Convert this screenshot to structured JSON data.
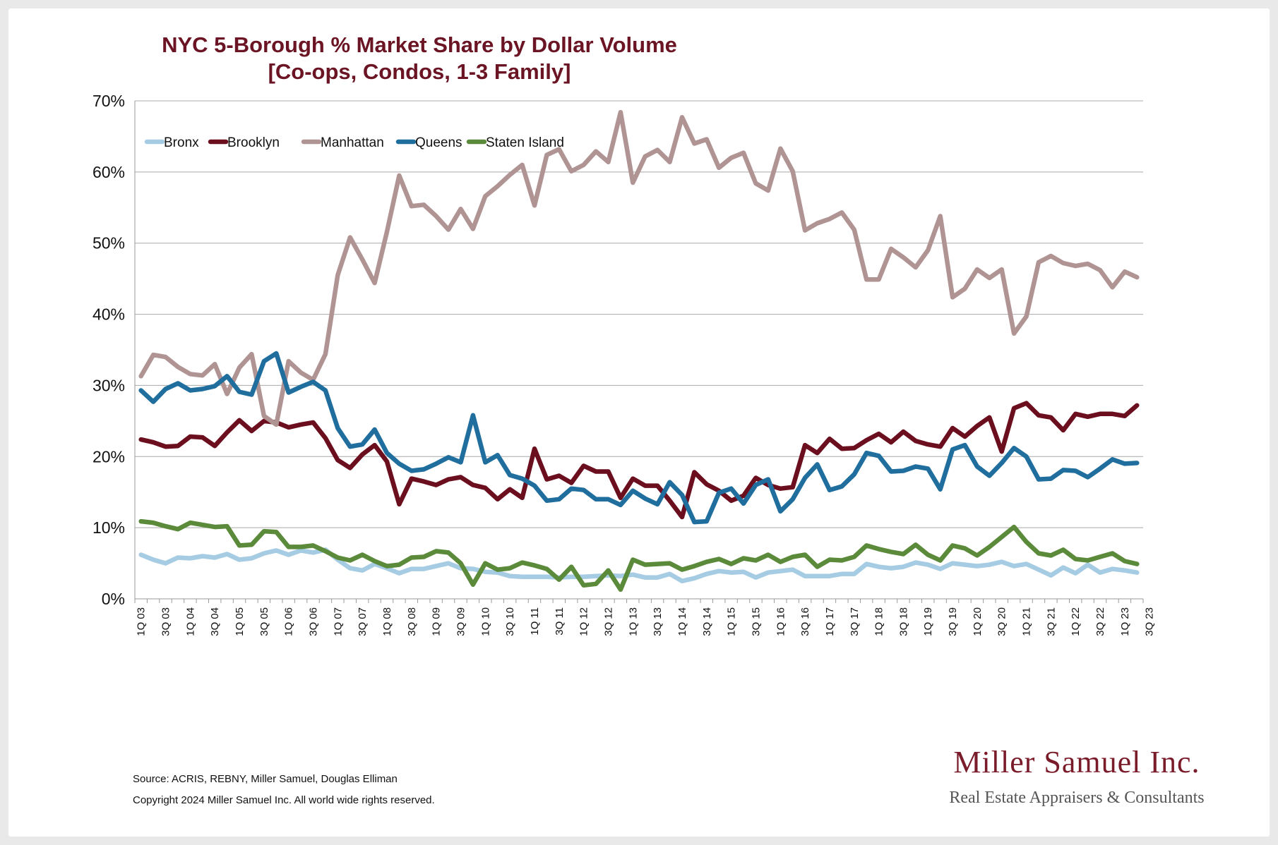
{
  "chart_data": {
    "type": "line",
    "title_line1": "NYC 5-Borough % Market Share by Dollar Volume",
    "title_line2": "[Co-ops, Condos, 1-3 Family]",
    "ylim": [
      0,
      70
    ],
    "yticks": [
      "0%",
      "10%",
      "20%",
      "30%",
      "40%",
      "50%",
      "60%",
      "70%"
    ],
    "grid": "horizontal",
    "legend_position": "top-left",
    "x_tick_labels": [
      "1Q 03",
      "3Q 03",
      "1Q 04",
      "3Q 04",
      "1Q 05",
      "3Q 05",
      "1Q 06",
      "3Q 06",
      "1Q 07",
      "3Q 07",
      "1Q 08",
      "3Q 08",
      "1Q 09",
      "3Q 09",
      "1Q 10",
      "3Q 10",
      "1Q 11",
      "3Q 11",
      "1Q 12",
      "3Q 12",
      "1Q 13",
      "3Q 13",
      "1Q 14",
      "3Q 14",
      "1Q 15",
      "3Q 15",
      "1Q 16",
      "3Q 16",
      "1Q 17",
      "3Q 17",
      "1Q 18",
      "3Q 18",
      "1Q 19",
      "3Q 19",
      "1Q 20",
      "3Q 20",
      "1Q 21",
      "3Q 21",
      "1Q 22",
      "3Q 22",
      "1Q 23",
      "3Q 23"
    ],
    "series": [
      {
        "name": "Bronx",
        "color": "#a6cce3",
        "values": [
          6.2,
          5.5,
          5.0,
          5.8,
          5.7,
          6.0,
          5.8,
          6.3,
          5.5,
          5.7,
          6.4,
          6.8,
          6.2,
          6.8,
          6.5,
          6.9,
          5.5,
          4.3,
          4.0,
          4.9,
          4.3,
          3.6,
          4.2,
          4.2,
          4.6,
          5.0,
          4.3,
          4.2,
          3.8,
          3.7,
          3.2,
          3.1,
          3.1,
          3.1,
          3.0,
          3.1,
          3.1,
          3.2,
          3.3,
          3.2,
          3.4,
          3.0,
          3.0,
          3.5,
          2.5,
          2.9,
          3.5,
          3.9,
          3.7,
          3.8,
          3.0,
          3.7,
          3.9,
          4.1,
          3.2,
          3.2,
          3.2,
          3.5,
          3.5,
          4.9,
          4.5,
          4.3,
          4.5,
          5.1,
          4.8,
          4.2,
          5.0,
          4.8,
          4.6,
          4.8,
          5.2,
          4.6,
          4.9,
          4.1,
          3.3,
          4.4,
          3.6,
          4.8,
          3.7,
          4.2,
          4.0,
          3.7
        ]
      },
      {
        "name": "Brooklyn",
        "color": "#6b0f1f",
        "values": [
          22.4,
          22.0,
          21.4,
          21.5,
          22.8,
          22.7,
          21.5,
          23.4,
          25.1,
          23.6,
          25.0,
          24.8,
          24.1,
          24.5,
          24.8,
          22.6,
          19.5,
          18.4,
          20.3,
          21.6,
          19.3,
          13.3,
          16.9,
          16.5,
          16.0,
          16.8,
          17.1,
          16.0,
          15.6,
          14.0,
          15.4,
          14.2,
          21.1,
          16.8,
          17.3,
          16.3,
          18.7,
          17.9,
          17.9,
          14.2,
          16.9,
          15.9,
          15.9,
          13.8,
          11.5,
          17.8,
          16.1,
          15.2,
          13.8,
          14.5,
          17.0,
          16.0,
          15.5,
          15.7,
          21.6,
          20.5,
          22.5,
          21.1,
          21.2,
          22.3,
          23.2,
          22.0,
          23.5,
          22.2,
          21.7,
          21.4,
          24.0,
          22.8,
          24.3,
          25.5,
          20.7,
          26.8,
          27.5,
          25.8,
          25.5,
          23.7,
          26.0,
          25.6,
          26.0,
          26.0,
          25.7,
          27.2
        ]
      },
      {
        "name": "Manhattan",
        "color": "#b09494",
        "values": [
          31.3,
          34.3,
          34.0,
          32.6,
          31.6,
          31.4,
          33.0,
          28.8,
          32.5,
          34.4,
          25.7,
          24.5,
          33.4,
          31.8,
          30.8,
          34.4,
          45.5,
          50.8,
          47.7,
          44.4,
          51.6,
          59.5,
          55.2,
          55.4,
          53.8,
          51.9,
          54.8,
          52.0,
          56.6,
          58.0,
          59.6,
          61.0,
          55.3,
          62.4,
          63.2,
          60.1,
          61.0,
          62.9,
          61.4,
          68.4,
          58.5,
          62.2,
          63.1,
          61.4,
          67.7,
          64.0,
          64.6,
          60.6,
          62.0,
          62.7,
          58.4,
          57.4,
          63.3,
          60.1,
          51.8,
          52.8,
          53.4,
          54.3,
          51.9,
          44.9,
          44.9,
          49.2,
          48.0,
          46.6,
          49.0,
          53.8,
          42.4,
          43.6,
          46.3,
          45.1,
          46.3,
          37.3,
          39.7,
          47.3,
          48.2,
          47.2,
          46.8,
          47.1,
          46.2,
          43.8,
          46.0,
          45.2
        ]
      },
      {
        "name": "Queens",
        "color": "#1f6e9e",
        "values": [
          29.3,
          27.7,
          29.5,
          30.3,
          29.3,
          29.5,
          29.9,
          31.3,
          29.1,
          28.7,
          33.4,
          34.5,
          29.0,
          29.8,
          30.5,
          29.3,
          24.0,
          21.4,
          21.7,
          23.8,
          20.5,
          19.0,
          18.0,
          18.2,
          19.0,
          19.9,
          19.2,
          25.8,
          19.2,
          20.2,
          17.4,
          16.9,
          15.9,
          13.8,
          14.0,
          15.5,
          15.3,
          14.0,
          14.0,
          13.2,
          15.2,
          14.1,
          13.3,
          16.4,
          14.6,
          10.8,
          10.9,
          14.9,
          15.5,
          13.4,
          16.0,
          16.8,
          12.3,
          14.0,
          17.0,
          18.9,
          15.3,
          15.8,
          17.5,
          20.5,
          20.1,
          17.9,
          18.0,
          18.6,
          18.3,
          15.4,
          21.0,
          21.6,
          18.6,
          17.3,
          19.1,
          21.2,
          20.0,
          16.8,
          16.9,
          18.1,
          18.0,
          17.1,
          18.3,
          19.6,
          19.0,
          19.1
        ]
      },
      {
        "name": "Staten Island",
        "color": "#5a8a3a",
        "values": [
          10.9,
          10.7,
          10.2,
          9.8,
          10.7,
          10.4,
          10.1,
          10.2,
          7.5,
          7.6,
          9.5,
          9.4,
          7.3,
          7.3,
          7.5,
          6.7,
          5.8,
          5.4,
          6.2,
          5.3,
          4.6,
          4.8,
          5.8,
          5.9,
          6.7,
          6.5,
          5.0,
          2.0,
          5.0,
          4.1,
          4.3,
          5.1,
          4.7,
          4.2,
          2.7,
          4.5,
          1.9,
          2.1,
          4.0,
          1.3,
          5.5,
          4.8,
          4.9,
          5.0,
          4.1,
          4.6,
          5.2,
          5.6,
          4.9,
          5.7,
          5.4,
          6.2,
          5.2,
          5.9,
          6.2,
          4.5,
          5.5,
          5.4,
          5.9,
          7.5,
          7.0,
          6.6,
          6.3,
          7.6,
          6.2,
          5.4,
          7.5,
          7.1,
          6.1,
          7.3,
          8.7,
          10.1,
          8.0,
          6.4,
          6.1,
          6.9,
          5.6,
          5.4,
          5.9,
          6.4,
          5.3,
          4.9
        ]
      }
    ]
  },
  "footer": {
    "source": "Source: ACRIS, REBNY, Miller Samuel, Douglas Elliman",
    "copyright": "Copyright 2024 Miller Samuel Inc.  All world wide rights reserved."
  },
  "brand": {
    "name": "Miller Samuel Inc.",
    "tagline": "Real Estate Appraisers & Consultants"
  }
}
